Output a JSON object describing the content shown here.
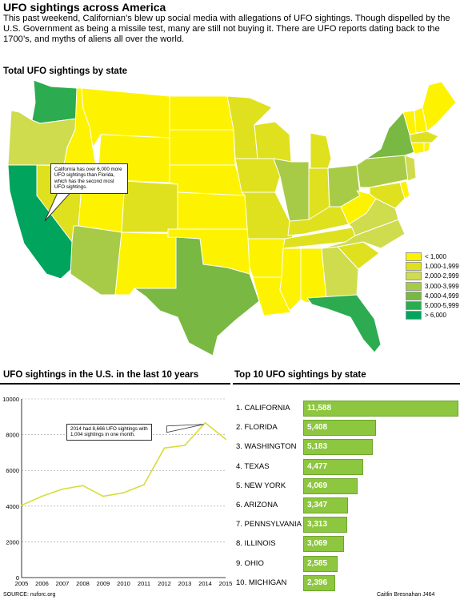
{
  "title": "UFO sightings across America",
  "intro": "This past weekend, Californian’s blew up social media with allegations of UFO sightings. Though dispelled by the U.S. Government as being a missile test, many are still not buying it. There are UFO reports dating back to the 1700’s, and myths of aliens all over the world.",
  "source": "SOURCE: nuforc.org",
  "credit": "Caitlin Bresnahan J464",
  "colors": {
    "lt1000": "#fdf200",
    "1000_1999": "#dfe11e",
    "2000_2999": "#cedc4e",
    "3000_3999": "#a7cb46",
    "4000_4999": "#79b842",
    "5000_5999": "#2cab51",
    "gt6000": "#00a45c",
    "bar": "#8dc63f",
    "line": "#d7dd3c"
  },
  "chart_data": [
    {
      "type": "heatmap",
      "title": "Total UFO sightings by state",
      "annotation": "California has over 6,000 more UFO sightings than Florida, which has the second most UFO sightings.",
      "legend": {
        "placement": "bottom-right",
        "entries": [
          "< 1,000",
          "1,000-1,999",
          "2,000-2,999",
          "3,000-3,999",
          "4,000-4,999",
          "5,000-5,999",
          "> 6,000"
        ]
      }
    },
    {
      "type": "line",
      "title": "UFO sightings in the U.S. in the last 10 years",
      "x": [
        2005,
        2006,
        2007,
        2008,
        2009,
        2010,
        2011,
        2012,
        2013,
        2014,
        2015
      ],
      "values": [
        4050,
        4550,
        4950,
        5150,
        4550,
        4750,
        5200,
        7250,
        7400,
        8666,
        7750
      ],
      "xlim": [
        2005,
        2015
      ],
      "ylim": [
        0,
        10000
      ],
      "yticks": [
        0,
        2000,
        4000,
        6000,
        8000,
        10000
      ],
      "xticks": [
        "2005",
        "2006",
        "2007",
        "2008",
        "2009",
        "2010",
        "2011",
        "2012",
        "2013",
        "2014",
        "2015"
      ],
      "grid": true,
      "annotation": "2014 had 8,666 UFO sightings with 1,004 sightings in one month."
    },
    {
      "type": "bar",
      "title": "Top 10 UFO sightings by state",
      "categories": [
        "1. CALIFORNIA",
        "2. FLORIDA",
        "3. WASHINGTON",
        "4. TEXAS",
        "5. NEW YORK",
        "6. ARIZONA",
        "7. PENNSYLVANIA",
        "8. ILLINOIS",
        "9. OHIO",
        "10. MICHIGAN"
      ],
      "values": [
        11588,
        5408,
        5183,
        4477,
        4069,
        3347,
        3313,
        3069,
        2585,
        2396
      ],
      "labels": [
        "11,588",
        "5,408",
        "5,183",
        "4,477",
        "4,069",
        "3,347",
        "3,313",
        "3,069",
        "2,585",
        "2,396"
      ],
      "xlim": [
        0,
        11588
      ]
    }
  ]
}
